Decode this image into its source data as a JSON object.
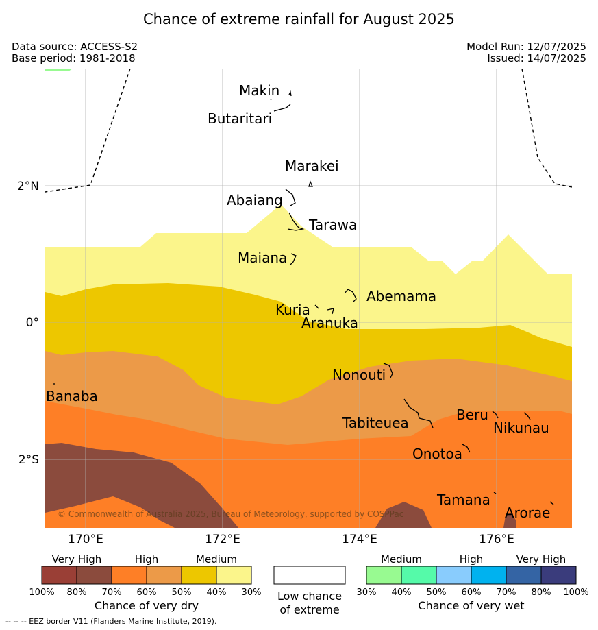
{
  "title": "Chance of extreme rainfall for August 2025",
  "data_source": "Data source: ACCESS-S2",
  "base_period": "Base period: 1981-2018",
  "model_run": "Model Run: 12/07/2025",
  "issued": "Issued: 14/07/2025",
  "copyright": "© Commonwealth of Australia 2025, Bureau of Meteorology, supported by COSPPac",
  "footnote": "--  --  -- EEZ border V11 (Flanders Marine Institute, 2019).",
  "map": {
    "lon_labels": [
      "170°E",
      "172°E",
      "174°E",
      "176°E"
    ],
    "lat_labels": [
      "2°N",
      "0°",
      "2°S"
    ],
    "places": [
      "Makin",
      "Butaritari",
      "Marakei",
      "Abaiang",
      "Tarawa",
      "Maiana",
      "Abemama",
      "Kuria",
      "Aranuka",
      "Nonouti",
      "Banaba",
      "Tabiteuea",
      "Beru",
      "Nikunau",
      "Onotoa",
      "Tamana",
      "Arorae"
    ]
  },
  "legend": {
    "dry": {
      "categories": [
        "Very High",
        "High",
        "Medium"
      ],
      "ticks": [
        "100%",
        "80%",
        "70%",
        "60%",
        "50%",
        "40%",
        "30%"
      ],
      "colors": [
        "#9a3f36",
        "#8b4b3d",
        "#fe7f26",
        "#ec9a48",
        "#edc700",
        "#fbf58b"
      ],
      "caption": "Chance of very dry"
    },
    "low": {
      "caption_line1": "Low chance",
      "caption_line2": "of extreme",
      "color": "#ffffff"
    },
    "wet": {
      "categories": [
        "Medium",
        "High",
        "Very High"
      ],
      "ticks": [
        "30%",
        "40%",
        "50%",
        "60%",
        "70%",
        "80%",
        "100%"
      ],
      "colors": [
        "#98fa91",
        "#55faa9",
        "#89ccfd",
        "#00b2ef",
        "#3464a4",
        "#3a3c7c"
      ],
      "caption": "Chance of very wet"
    }
  }
}
